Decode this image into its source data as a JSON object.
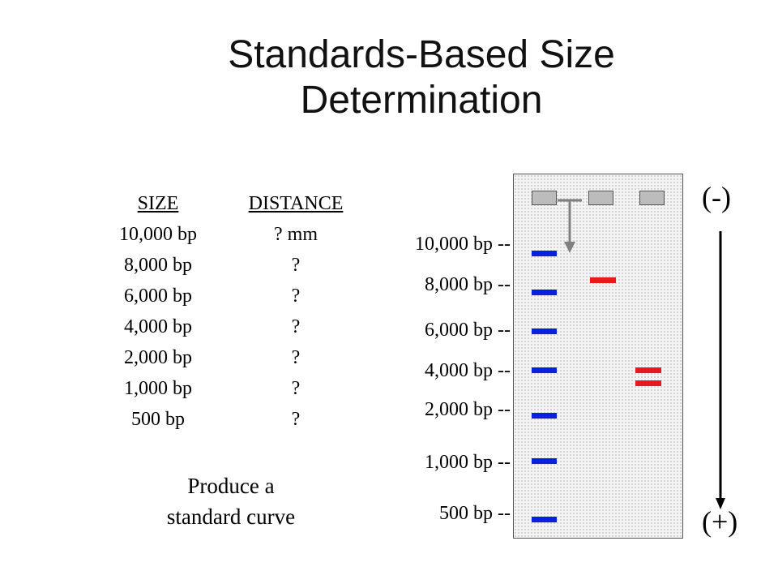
{
  "title": [
    "Standards-Based Size",
    "Determination"
  ],
  "table": {
    "headers": {
      "size": "SIZE",
      "distance": "DISTANCE"
    },
    "rows": [
      {
        "size": "10,000 bp",
        "distance": "? mm"
      },
      {
        "size": "8,000 bp",
        "distance": "?"
      },
      {
        "size": "6,000 bp",
        "distance": "?"
      },
      {
        "size": "4,000 bp",
        "distance": "?"
      },
      {
        "size": "2,000 bp",
        "distance": "?"
      },
      {
        "size": "1,000 bp",
        "distance": "?"
      },
      {
        "size": "500 bp",
        "distance": "?"
      }
    ]
  },
  "caption": [
    "Produce a",
    "standard curve"
  ],
  "gel_labels": [
    "10,000 bp --",
    "8,000 bp --",
    "6,000 bp --",
    "4,000 bp --",
    "2,000 bp --",
    "1,000 bp --",
    "500 bp --"
  ],
  "poles": {
    "negative": "(-)",
    "positive": "(+)"
  },
  "colors": {
    "ladder_band": "#0b1fe0",
    "sample_band": "#e8181b",
    "well": "#bcbcbc",
    "gel": "#f4f4f4"
  }
}
